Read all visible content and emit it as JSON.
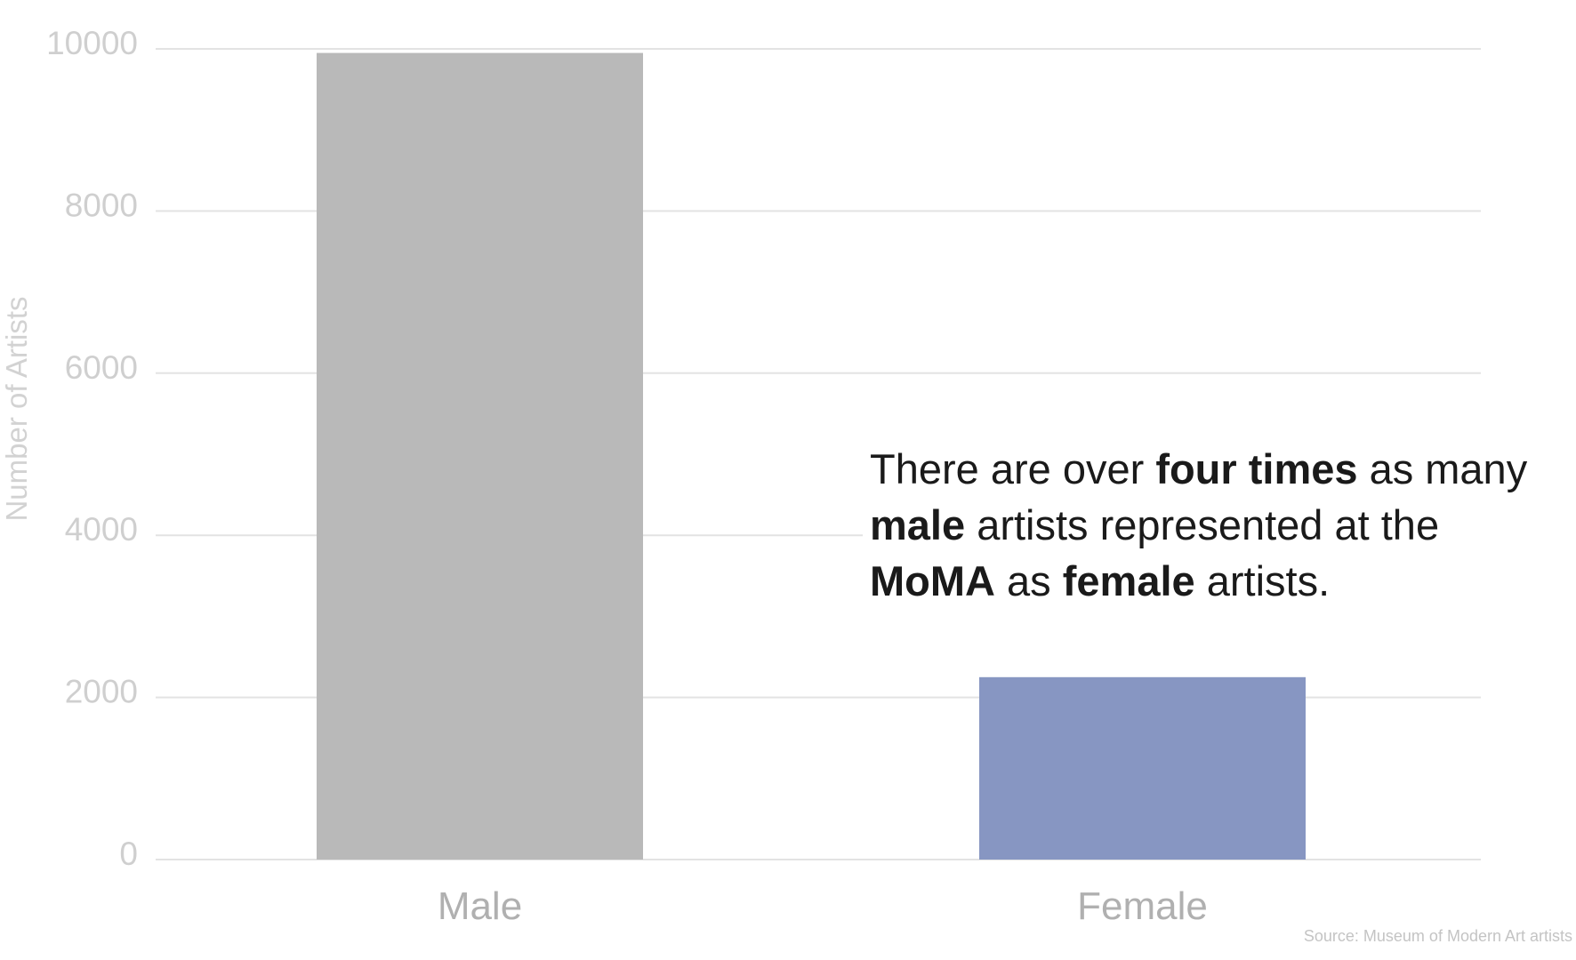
{
  "chart_data": {
    "type": "bar",
    "categories": [
      "Male",
      "Female"
    ],
    "values": [
      9950,
      2250
    ],
    "colors": [
      "#b9b9b9",
      "#8796c2"
    ],
    "ylabel": "Number of Artists",
    "xlabel": "",
    "ylim": [
      0,
      10000
    ],
    "yticks": [
      "0",
      "2000",
      "4000",
      "6000",
      "8000",
      "10000"
    ],
    "grid": true,
    "gridline_color": "#e3e3e3"
  },
  "annotation": {
    "p1": "There are over ",
    "b1": "four times",
    "p2": " as many ",
    "b2": "male",
    "p3": " artists represented at the ",
    "b3": "MoMA",
    "p4": " as ",
    "b4": "female",
    "p5": " artists."
  },
  "source": "Source: Museum of Modern Art artists"
}
